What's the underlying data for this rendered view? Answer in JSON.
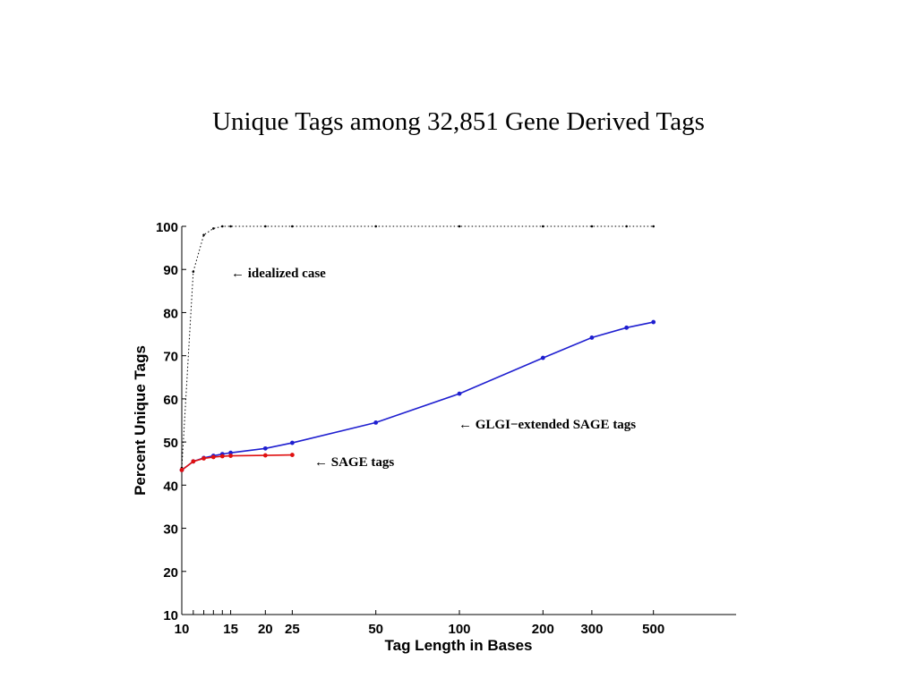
{
  "chart_data": {
    "type": "line",
    "title": "Unique Tags among 32,851 Gene Derived Tags",
    "xlabel": "Tag Length in Bases",
    "ylabel": "Percent Unique Tags",
    "xscale": "log",
    "x": [
      10,
      11,
      12,
      13,
      14,
      15,
      20,
      25,
      50,
      100,
      200,
      300,
      400,
      500
    ],
    "series": [
      {
        "name": "idealized case",
        "color": "#000000",
        "linestyle": "dotted",
        "values": [
          44,
          89.5,
          98,
          99.5,
          100,
          100,
          100,
          100,
          100,
          100,
          100,
          100,
          100,
          100
        ]
      },
      {
        "name": "GLGI−extended SAGE tags",
        "color": "#1f1fd0",
        "linestyle": "solid",
        "values": [
          43.5,
          45.5,
          46.3,
          46.8,
          47.2,
          47.5,
          48.5,
          49.8,
          54.5,
          61.2,
          69.5,
          74.2,
          76.5,
          77.8
        ]
      },
      {
        "name": "SAGE tags",
        "color": "#e01010",
        "linestyle": "solid",
        "values": [
          43.5,
          45.5,
          46.2,
          46.5,
          46.7,
          46.8,
          46.9,
          47.0,
          null,
          null,
          null,
          null,
          null,
          null
        ]
      }
    ],
    "annotations": [
      "← idealized case",
      "← GLGI−extended SAGE tags",
      "← SAGE tags"
    ],
    "xlim": [
      10,
      1000
    ],
    "xticks": [
      10,
      15,
      20,
      25,
      50,
      100,
      200,
      300,
      500
    ],
    "xminorticks": [
      11,
      12,
      13,
      14
    ],
    "ylim": [
      10,
      100
    ],
    "yticks": [
      10,
      20,
      30,
      40,
      50,
      60,
      70,
      80,
      90,
      100
    ],
    "grid": false
  }
}
